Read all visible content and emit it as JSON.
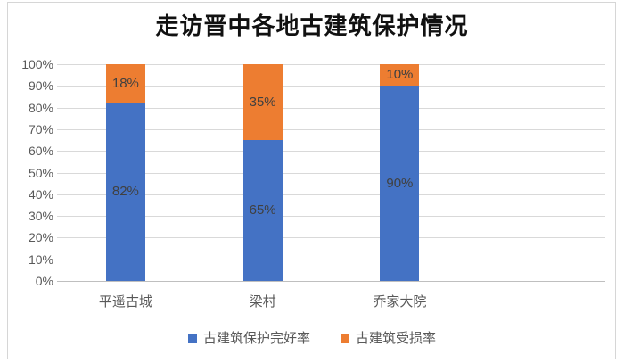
{
  "chart_data": {
    "type": "bar",
    "subtype": "stacked-100-percent-column",
    "title": "走访晋中各地古建筑保护情况",
    "categories": [
      "平遥古城",
      "梁村",
      "乔家大院"
    ],
    "series": [
      {
        "name": "古建筑保护完好率",
        "color": "#4472C4",
        "values": [
          82,
          65,
          90
        ],
        "labels": [
          "82%",
          "65%",
          "90%"
        ]
      },
      {
        "name": "古建筑受损率",
        "color": "#ED7D31",
        "values": [
          18,
          35,
          10
        ],
        "labels": [
          "18%",
          "35%",
          "10%"
        ]
      }
    ],
    "y_axis": {
      "min": 0,
      "max": 100,
      "tick_step": 10,
      "tick_labels": [
        "0%",
        "10%",
        "20%",
        "30%",
        "40%",
        "50%",
        "60%",
        "70%",
        "80%",
        "90%",
        "100%"
      ]
    },
    "grid": true,
    "legend_position": "bottom",
    "colors": {
      "gridline": "#d9d9d9",
      "axis_line": "#bfbfbf",
      "tick_label": "#595959",
      "data_label": "#404040",
      "frame_border": "#d6d6d6"
    }
  }
}
